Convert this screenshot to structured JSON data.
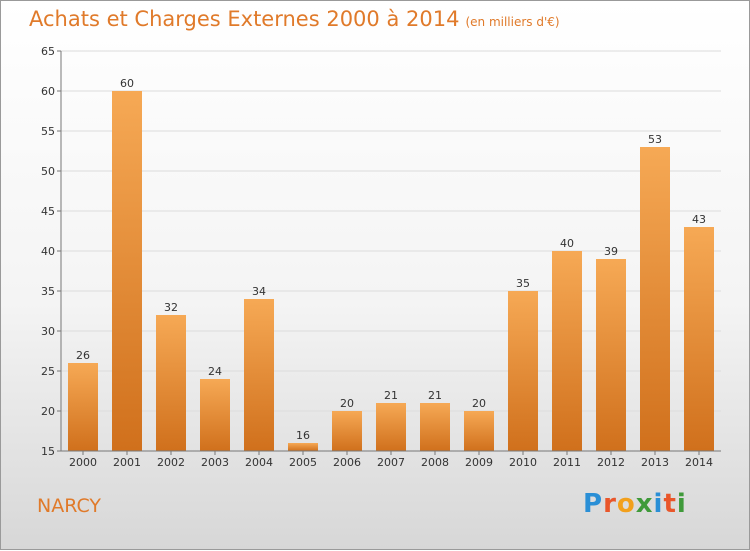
{
  "title": "Achats et Charges Externes 2000 à 2014",
  "unit_note": "(en milliers d'€)",
  "place": "NARCY",
  "brand": {
    "letters": [
      "P",
      "r",
      "o",
      "x",
      "i",
      "t",
      "i"
    ],
    "colors": [
      "#2a8fd6",
      "#e9562a",
      "#f2a01c",
      "#3f9a3a",
      "#2a8fd6",
      "#e9562a",
      "#3f9a3a"
    ]
  },
  "colors": {
    "accent": "#e07a2a",
    "bar_top": "#f6a955",
    "bar_bottom": "#d0701c"
  },
  "chart_data": {
    "type": "bar",
    "title": "Achats et Charges Externes 2000 à 2014",
    "subtitle": "(en milliers d'€)",
    "categories": [
      "2000",
      "2001",
      "2002",
      "2003",
      "2004",
      "2005",
      "2006",
      "2007",
      "2008",
      "2009",
      "2010",
      "2011",
      "2012",
      "2013",
      "2014"
    ],
    "values": [
      26,
      60,
      32,
      24,
      34,
      16,
      20,
      21,
      21,
      20,
      35,
      40,
      39,
      53,
      43
    ],
    "ylim": [
      15,
      65
    ],
    "yticks": [
      15,
      20,
      25,
      30,
      35,
      40,
      45,
      50,
      55,
      60,
      65
    ],
    "xlabel": "",
    "ylabel": "",
    "grid": true
  }
}
